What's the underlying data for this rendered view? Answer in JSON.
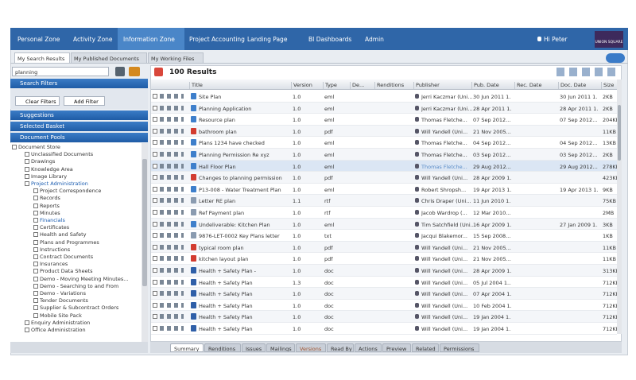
{
  "nav": {
    "items": [
      "Personal Zone",
      "Activity Zone",
      "Information Zone",
      "Project Accounting",
      "Landing Page",
      "BI Dashboards",
      "Admin"
    ],
    "user": "Hi Peter",
    "logo": "UNION SQUARE"
  },
  "tabs": [
    "My Search Results",
    "My Published Documents",
    "My Working Files"
  ],
  "search": {
    "query": "planning"
  },
  "sidebar": {
    "filters_title": "Search Filters",
    "buttons": [
      "Clear Filters",
      "Add Filter"
    ],
    "sections": [
      "Suggestions",
      "Selected Basket",
      "Document Pools"
    ],
    "tree": {
      "label": "Document Store",
      "children": [
        {
          "label": "Unclassified Documents"
        },
        {
          "label": "Drawings"
        },
        {
          "label": "Knowledge Area"
        },
        {
          "label": "Image Library"
        },
        {
          "label": "Project Administration",
          "children": [
            {
              "label": "Project Correspondence"
            },
            {
              "label": "Records"
            },
            {
              "label": "Reports"
            },
            {
              "label": "Minutes"
            },
            {
              "label": "Financials"
            },
            {
              "label": "Certificates"
            },
            {
              "label": "Health and Safety"
            },
            {
              "label": "Plans and Programmes"
            },
            {
              "label": "Instructions"
            },
            {
              "label": "Contract Documents"
            },
            {
              "label": "Insurances"
            },
            {
              "label": "Product Data Sheets"
            },
            {
              "label": "Demo - Moving Meeting Minutes..."
            },
            {
              "label": "Demo - Searching to and From"
            },
            {
              "label": "Demo - Variations"
            },
            {
              "label": "Tender Documents"
            },
            {
              "label": "Supplier & Subcontract Orders"
            },
            {
              "label": "Mobile Site Pack"
            }
          ]
        },
        {
          "label": "Enquiry Administration"
        },
        {
          "label": "Office Administration"
        }
      ]
    }
  },
  "results": {
    "count_label": "100 Results",
    "columns": [
      "Title",
      "Version",
      "Type",
      "De...",
      "Renditions",
      "Publisher",
      "Pub. Date",
      "Rec. Date",
      "Doc. Date",
      "Size"
    ],
    "rows": [
      {
        "title": "Site Plan",
        "version": "1.0",
        "type": "eml",
        "publisher": "Jerri Kaczmar (Uni...",
        "pub_date": "30 Jun 2011 1...",
        "doc_date": "30 Jun 2011 1...",
        "size": "2KB"
      },
      {
        "title": "Planning Application",
        "version": "1.0",
        "type": "eml",
        "publisher": "Jerri Kaczmar (Uni...",
        "pub_date": "28 Apr 2011 1...",
        "doc_date": "28 Apr 2011 1...",
        "size": "2KB"
      },
      {
        "title": "Resource plan",
        "version": "1.0",
        "type": "eml",
        "publisher": "Thomas Fletche...",
        "pub_date": "07 Sep 2012...",
        "doc_date": "07 Sep 2012...",
        "size": "204KB"
      },
      {
        "title": "bathroom plan",
        "version": "1.0",
        "type": "pdf",
        "publisher": "Will Yandell (Uni...",
        "pub_date": "21 Nov 2005...",
        "size": "11KB"
      },
      {
        "title": "Plans 1234 have checked",
        "version": "1.0",
        "type": "eml",
        "publisher": "Thomas Fletche...",
        "pub_date": "04 Sep 2012...",
        "doc_date": "04 Sep 2012...",
        "size": "13KB"
      },
      {
        "title": "Planning Permission Re xyz",
        "version": "1.0",
        "type": "eml",
        "publisher": "Thomas Fletche...",
        "pub_date": "03 Sep 2012...",
        "doc_date": "03 Sep 2012...",
        "size": "2KB"
      },
      {
        "title": "Hall Floor Plan",
        "version": "1.0",
        "type": "eml",
        "publisher": "Thomas Fletche...",
        "pub_date": "29 Aug 2012...",
        "doc_date": "29 Aug 2012...",
        "size": "278KB"
      },
      {
        "title": "Changes to planning permission",
        "version": "1.0",
        "type": "pdf",
        "publisher": "Will Yandell (Uni...",
        "pub_date": "28 Apr 2009 1...",
        "size": "423KB"
      },
      {
        "title": "P13-008 - Water Treatment Plan",
        "version": "1.0",
        "type": "eml",
        "publisher": "Robert Shropsh...",
        "pub_date": "19 Apr 2013 1...",
        "doc_date": "19 Apr 2013 1...",
        "size": "9KB"
      },
      {
        "title": "Letter RE plan",
        "version": "1.1",
        "type": "rtf",
        "publisher": "Chris Draper (Uni...",
        "pub_date": "11 Jun 2010 1...",
        "size": "75KB"
      },
      {
        "title": "Ref Payment plan",
        "version": "1.0",
        "type": "rtf",
        "publisher": "Jacob Wardrop (...",
        "pub_date": "12 Mar 2010...",
        "size": "2MB"
      },
      {
        "title": "Undeliverable: Kitchen Plan",
        "version": "1.0",
        "type": "eml",
        "publisher": "Tim Satchfield (Uni...",
        "pub_date": "16 Apr 2009 1...",
        "doc_date": "27 Jan 2009 1...",
        "size": "3KB"
      },
      {
        "title": "9876-LET-0002 Key Plans letter",
        "version": "1.0",
        "type": "txt",
        "publisher": "Jacqui Blakemor...",
        "pub_date": "15 Sep 2008...",
        "size": "1KB"
      },
      {
        "title": "typical room plan",
        "version": "1.0",
        "type": "pdf",
        "publisher": "Will Yandell (Uni...",
        "pub_date": "21 Nov 2005...",
        "size": "11KB"
      },
      {
        "title": "kitchen layout plan",
        "version": "1.0",
        "type": "pdf",
        "publisher": "Will Yandell (Uni...",
        "pub_date": "21 Nov 2005...",
        "size": "11KB"
      },
      {
        "title": "Health + Safety Plan -",
        "version": "1.0",
        "type": "doc",
        "publisher": "Will Yandell (Uni...",
        "pub_date": "28 Apr 2009 1...",
        "size": "313KB"
      },
      {
        "title": "Health + Safety Plan",
        "version": "1.3",
        "type": "doc",
        "publisher": "Will Yandell (Uni...",
        "pub_date": "05 Jul 2004 1...",
        "size": "712KB"
      },
      {
        "title": "Health + Safety Plan",
        "version": "1.0",
        "type": "doc",
        "publisher": "Will Yandell (Uni...",
        "pub_date": "07 Apr 2004 1...",
        "size": "712KB"
      },
      {
        "title": "Health + Safety Plan",
        "version": "1.0",
        "type": "doc",
        "publisher": "Will Yandell (Uni...",
        "pub_date": "10 Feb 2004 1...",
        "size": "712KB"
      },
      {
        "title": "Health + Safety Plan",
        "version": "1.0",
        "type": "doc",
        "publisher": "Will Yandell (Uni...",
        "pub_date": "19 Jan 2004 1...",
        "size": "712KB"
      },
      {
        "title": "Health + Safety Plan",
        "version": "1.0",
        "type": "doc",
        "publisher": "Will Yandell (Uni...",
        "pub_date": "19 Jan 2004 1...",
        "size": "712KB"
      }
    ]
  },
  "detail_tabs": [
    "Summary",
    "Renditions",
    "Issues",
    "Mailings",
    "Versions",
    "Read By",
    "Actions",
    "Preview",
    "Related",
    "Permissions"
  ]
}
